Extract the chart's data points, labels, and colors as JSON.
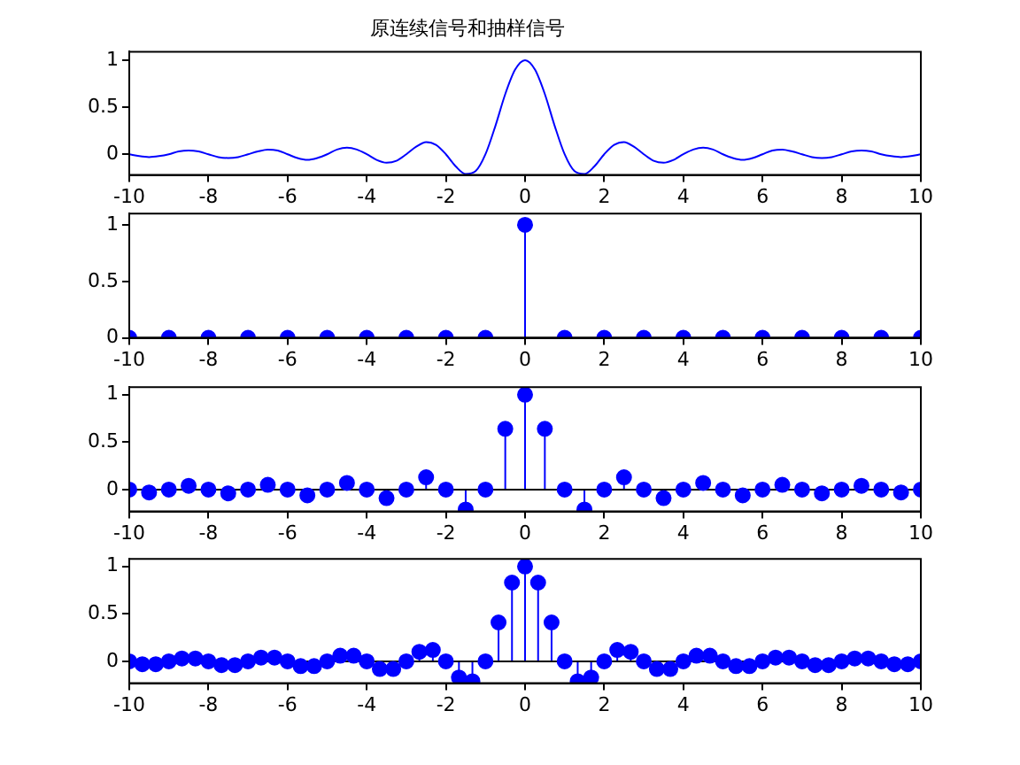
{
  "chart_data": [
    {
      "type": "line",
      "title": "原连续信号和抽样信号",
      "color": "#0000ff",
      "marker": "none",
      "line_style": "solid",
      "x": [
        -10,
        -9.75,
        -9.5,
        -9.25,
        -9,
        -8.75,
        -8.5,
        -8.25,
        -8,
        -7.75,
        -7.5,
        -7.25,
        -7,
        -6.75,
        -6.5,
        -6.25,
        -6,
        -5.75,
        -5.5,
        -5.25,
        -5,
        -4.75,
        -4.5,
        -4.25,
        -4,
        -3.75,
        -3.5,
        -3.25,
        -3,
        -2.75,
        -2.5,
        -2.25,
        -2,
        -1.75,
        -1.5,
        -1.25,
        -1,
        -0.75,
        -0.5,
        -0.25,
        0,
        0.25,
        0.5,
        0.75,
        1,
        1.25,
        1.5,
        1.75,
        2,
        2.25,
        2.5,
        2.75,
        3,
        3.25,
        3.5,
        3.75,
        4,
        4.25,
        4.5,
        4.75,
        5,
        5.25,
        5.5,
        5.75,
        6,
        6.25,
        6.5,
        6.75,
        7,
        7.25,
        7.5,
        7.75,
        8,
        8.25,
        8.5,
        8.75,
        9,
        9.25,
        9.5,
        9.75,
        10
      ],
      "values": [
        0,
        -0.02,
        -0.03,
        -0.02,
        0,
        0.03,
        0.04,
        0.03,
        0,
        -0.03,
        -0.04,
        -0.03,
        0,
        0.03,
        0.05,
        0.04,
        0,
        -0.04,
        -0.06,
        -0.04,
        0,
        0.05,
        0.07,
        0.05,
        0,
        -0.06,
        -0.09,
        -0.07,
        0,
        0.08,
        0.13,
        0.1,
        0,
        -0.13,
        -0.21,
        -0.18,
        0,
        0.3,
        0.64,
        0.9,
        1,
        0.9,
        0.64,
        0.3,
        0,
        -0.18,
        -0.21,
        -0.13,
        0,
        0.1,
        0.13,
        0.08,
        0,
        -0.07,
        -0.09,
        -0.06,
        0,
        0.05,
        0.07,
        0.05,
        0,
        -0.04,
        -0.06,
        -0.04,
        0,
        0.04,
        0.05,
        0.03,
        0,
        -0.03,
        -0.04,
        -0.03,
        0,
        0.03,
        0.04,
        0.03,
        0,
        -0.02,
        -0.03,
        -0.02,
        0
      ],
      "xlim": [
        -10,
        10
      ],
      "xticks": [
        -10,
        -8,
        -6,
        -4,
        -2,
        0,
        2,
        4,
        6,
        8,
        10
      ],
      "ylim": [
        -0.22,
        1.09
      ],
      "yticks": [
        0,
        0.5,
        1
      ]
    },
    {
      "type": "lollipop",
      "color": "#0000ff",
      "marker": "circle",
      "x": [
        -10,
        -9,
        -8,
        -7,
        -6,
        -5,
        -4,
        -3,
        -2,
        -1,
        0,
        1,
        2,
        3,
        4,
        5,
        6,
        7,
        8,
        9,
        10
      ],
      "values": [
        0,
        0,
        0,
        0,
        0,
        0,
        0,
        0,
        0,
        0,
        1,
        0,
        0,
        0,
        0,
        0,
        0,
        0,
        0,
        0,
        0
      ],
      "xlim": [
        -10,
        10
      ],
      "xticks": [
        -10,
        -8,
        -6,
        -4,
        -2,
        0,
        2,
        4,
        6,
        8,
        10
      ],
      "ylim": [
        0,
        1.1
      ],
      "yticks": [
        0,
        0.5,
        1
      ]
    },
    {
      "type": "lollipop",
      "color": "#0000ff",
      "marker": "circle",
      "x": [
        -10,
        -9.5,
        -9,
        -8.5,
        -8,
        -7.5,
        -7,
        -6.5,
        -6,
        -5.5,
        -5,
        -4.5,
        -4,
        -3.5,
        -3,
        -2.5,
        -2,
        -1.5,
        -1,
        -0.5,
        0,
        0.5,
        1,
        1.5,
        2,
        2.5,
        3,
        3.5,
        4,
        4.5,
        5,
        5.5,
        6,
        6.5,
        7,
        7.5,
        8,
        8.5,
        9,
        9.5,
        10
      ],
      "values": [
        0,
        -0.03,
        0,
        0.04,
        0,
        -0.04,
        0,
        0.05,
        0,
        -0.06,
        0,
        0.07,
        0,
        -0.09,
        0,
        0.13,
        0,
        -0.21,
        0,
        0.64,
        1,
        0.64,
        0,
        -0.21,
        0,
        0.13,
        0,
        -0.09,
        0,
        0.07,
        0,
        -0.06,
        0,
        0.05,
        0,
        -0.04,
        0,
        0.04,
        0,
        -0.03,
        0
      ],
      "xlim": [
        -10,
        10
      ],
      "xticks": [
        -10,
        -8,
        -6,
        -4,
        -2,
        0,
        2,
        4,
        6,
        8,
        10
      ],
      "ylim": [
        -0.23,
        1.08
      ],
      "yticks": [
        0,
        0.5,
        1
      ]
    },
    {
      "type": "lollipop",
      "color": "#0000ff",
      "marker": "circle",
      "x": [
        -10,
        -9.67,
        -9.33,
        -9,
        -8.67,
        -8.33,
        -8,
        -7.67,
        -7.33,
        -7,
        -6.67,
        -6.33,
        -6,
        -5.67,
        -5.33,
        -5,
        -4.67,
        -4.33,
        -4,
        -3.67,
        -3.33,
        -3,
        -2.67,
        -2.33,
        -2,
        -1.67,
        -1.33,
        -1,
        -0.67,
        -0.33,
        0,
        0.33,
        0.67,
        1,
        1.33,
        1.67,
        2,
        2.33,
        2.67,
        3,
        3.33,
        3.67,
        4,
        4.33,
        4.67,
        5,
        5.33,
        5.67,
        6,
        6.33,
        6.67,
        7,
        7.33,
        7.67,
        8,
        8.33,
        8.67,
        9,
        9.33,
        9.67,
        10
      ],
      "values": [
        0,
        -0.03,
        -0.03,
        0,
        0.03,
        0.03,
        0,
        -0.04,
        -0.04,
        0,
        0.04,
        0.04,
        0,
        -0.05,
        -0.05,
        0,
        0.06,
        0.06,
        0,
        -0.08,
        -0.08,
        0,
        0.1,
        0.12,
        0,
        -0.17,
        -0.21,
        0,
        0.41,
        0.83,
        1,
        0.83,
        0.41,
        0,
        -0.21,
        -0.17,
        0,
        0.12,
        0.1,
        0,
        -0.08,
        -0.08,
        0,
        0.06,
        0.06,
        0,
        -0.05,
        -0.05,
        0,
        0.04,
        0.04,
        0,
        -0.04,
        -0.04,
        0,
        0.03,
        0.03,
        0,
        -0.03,
        -0.03,
        0
      ],
      "xlim": [
        -10,
        10
      ],
      "xticks": [
        -10,
        -8,
        -6,
        -4,
        -2,
        0,
        2,
        4,
        6,
        8,
        10
      ],
      "ylim": [
        -0.23,
        1.08
      ],
      "yticks": [
        0,
        0.5,
        1
      ]
    }
  ]
}
